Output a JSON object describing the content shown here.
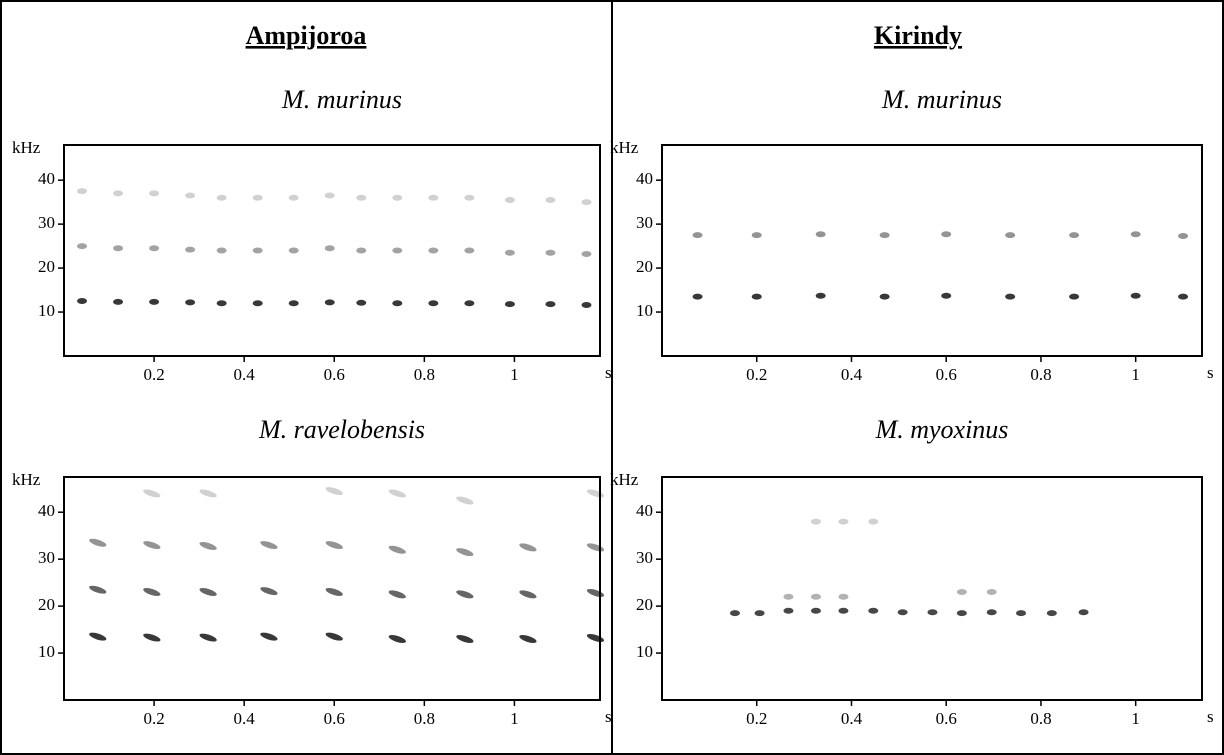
{
  "headers": [
    "Ampijoroa",
    "Kirindy"
  ],
  "chart_data": [
    {
      "type": "spectrogram",
      "title": "M. murinus",
      "y_label": "kHz",
      "x_label": "s",
      "xlim": [
        0,
        1.19
      ],
      "ylim": [
        0,
        48
      ],
      "xticks": [
        0.2,
        0.4,
        0.6,
        0.8,
        1
      ],
      "yticks": [
        10,
        20,
        30,
        40
      ],
      "series": [
        {
          "color": "#222222",
          "x": [
            0.04,
            0.12,
            0.2,
            0.28,
            0.35,
            0.43,
            0.51,
            0.59,
            0.66,
            0.74,
            0.82,
            0.9,
            0.99,
            1.08,
            1.16
          ],
          "values": [
            12.5,
            12.3,
            12.3,
            12.2,
            12,
            12,
            12,
            12.2,
            12.1,
            12,
            12,
            12,
            11.8,
            11.8,
            11.6
          ]
        },
        {
          "color": "#999999",
          "x": [
            0.04,
            0.12,
            0.2,
            0.28,
            0.35,
            0.43,
            0.51,
            0.59,
            0.66,
            0.74,
            0.82,
            0.9,
            0.99,
            1.08,
            1.16
          ],
          "values": [
            25,
            24.5,
            24.5,
            24.2,
            24,
            24,
            24,
            24.5,
            24,
            24,
            24,
            24,
            23.5,
            23.5,
            23.2
          ]
        },
        {
          "color": "#cccccc",
          "x": [
            0.04,
            0.12,
            0.2,
            0.28,
            0.35,
            0.43,
            0.51,
            0.59,
            0.66,
            0.74,
            0.82,
            0.9,
            0.99,
            1.08,
            1.16
          ],
          "values": [
            37.5,
            37,
            37,
            36.5,
            36,
            36,
            36,
            36.5,
            36,
            36,
            36,
            36,
            35.5,
            35.5,
            35
          ]
        }
      ]
    },
    {
      "type": "spectrogram",
      "title": "M. murinus",
      "y_label": "kHz",
      "x_label": "s",
      "xlim": [
        0,
        1.14
      ],
      "ylim": [
        0,
        48
      ],
      "xticks": [
        0.2,
        0.4,
        0.6,
        0.8,
        1
      ],
      "yticks": [
        10,
        20,
        30,
        40
      ],
      "series": [
        {
          "color": "#222222",
          "x": [
            0.075,
            0.2,
            0.335,
            0.47,
            0.6,
            0.735,
            0.87,
            1.0,
            1.1
          ],
          "values": [
            13.5,
            13.5,
            13.7,
            13.5,
            13.7,
            13.5,
            13.5,
            13.7,
            13.5
          ]
        },
        {
          "color": "#888888",
          "x": [
            0.075,
            0.2,
            0.335,
            0.47,
            0.6,
            0.735,
            0.87,
            1.0,
            1.1
          ],
          "values": [
            27.5,
            27.5,
            27.7,
            27.5,
            27.7,
            27.5,
            27.5,
            27.7,
            27.3
          ]
        }
      ]
    },
    {
      "type": "spectrogram",
      "title": "M. ravelobensis",
      "y_label": "kHz",
      "x_label": "s",
      "xlim": [
        0,
        1.19
      ],
      "ylim": [
        0,
        47.5
      ],
      "xticks": [
        0.2,
        0.4,
        0.6,
        0.8,
        1
      ],
      "yticks": [
        10,
        20,
        30,
        40
      ],
      "series": [
        {
          "color": "#222222",
          "x": [
            0.075,
            0.195,
            0.32,
            0.455,
            0.6,
            0.74,
            0.89,
            1.03,
            1.18
          ],
          "values": [
            13.5,
            13.3,
            13.3,
            13.5,
            13.5,
            13,
            13,
            13,
            13.2
          ]
        },
        {
          "color": "#555555",
          "x": [
            0.075,
            0.195,
            0.32,
            0.455,
            0.6,
            0.74,
            0.89,
            1.03,
            1.18
          ],
          "values": [
            23.5,
            23,
            23,
            23.2,
            23,
            22.5,
            22.5,
            22.5,
            22.8
          ]
        },
        {
          "color": "#888888",
          "x": [
            0.075,
            0.195,
            0.32,
            0.455,
            0.6,
            0.74,
            0.89,
            1.03,
            1.18
          ],
          "values": [
            33.5,
            33,
            32.8,
            33,
            33,
            32,
            31.5,
            32.5,
            32.5
          ]
        },
        {
          "color": "#cccccc",
          "x": [
            0.195,
            0.32,
            0.6,
            0.74,
            0.89,
            1.18
          ],
          "values": [
            44,
            44,
            44.5,
            44,
            42.5,
            44
          ]
        }
      ]
    },
    {
      "type": "spectrogram",
      "title": "M. myoxinus",
      "y_label": "kHz",
      "x_label": "s",
      "xlim": [
        0,
        1.14
      ],
      "ylim": [
        0,
        47.5
      ],
      "xticks": [
        0.2,
        0.4,
        0.6,
        0.8,
        1
      ],
      "yticks": [
        10,
        20,
        30,
        40
      ],
      "series": [
        {
          "color": "#333333",
          "x": [
            0.154,
            0.206,
            0.267,
            0.325,
            0.383,
            0.446,
            0.508,
            0.571,
            0.633,
            0.696,
            0.758,
            0.823,
            0.89
          ],
          "values": [
            18.5,
            18.5,
            19,
            19,
            19,
            19,
            18.7,
            18.7,
            18.5,
            18.7,
            18.5,
            18.5,
            18.7
          ]
        },
        {
          "color": "#aaaaaa",
          "x": [
            0.267,
            0.325,
            0.383,
            0.633,
            0.696
          ],
          "values": [
            22,
            22,
            22,
            23,
            23
          ]
        },
        {
          "color": "#cccccc",
          "x": [
            0.325,
            0.383,
            0.446
          ],
          "values": [
            38,
            38,
            38
          ]
        }
      ]
    }
  ]
}
